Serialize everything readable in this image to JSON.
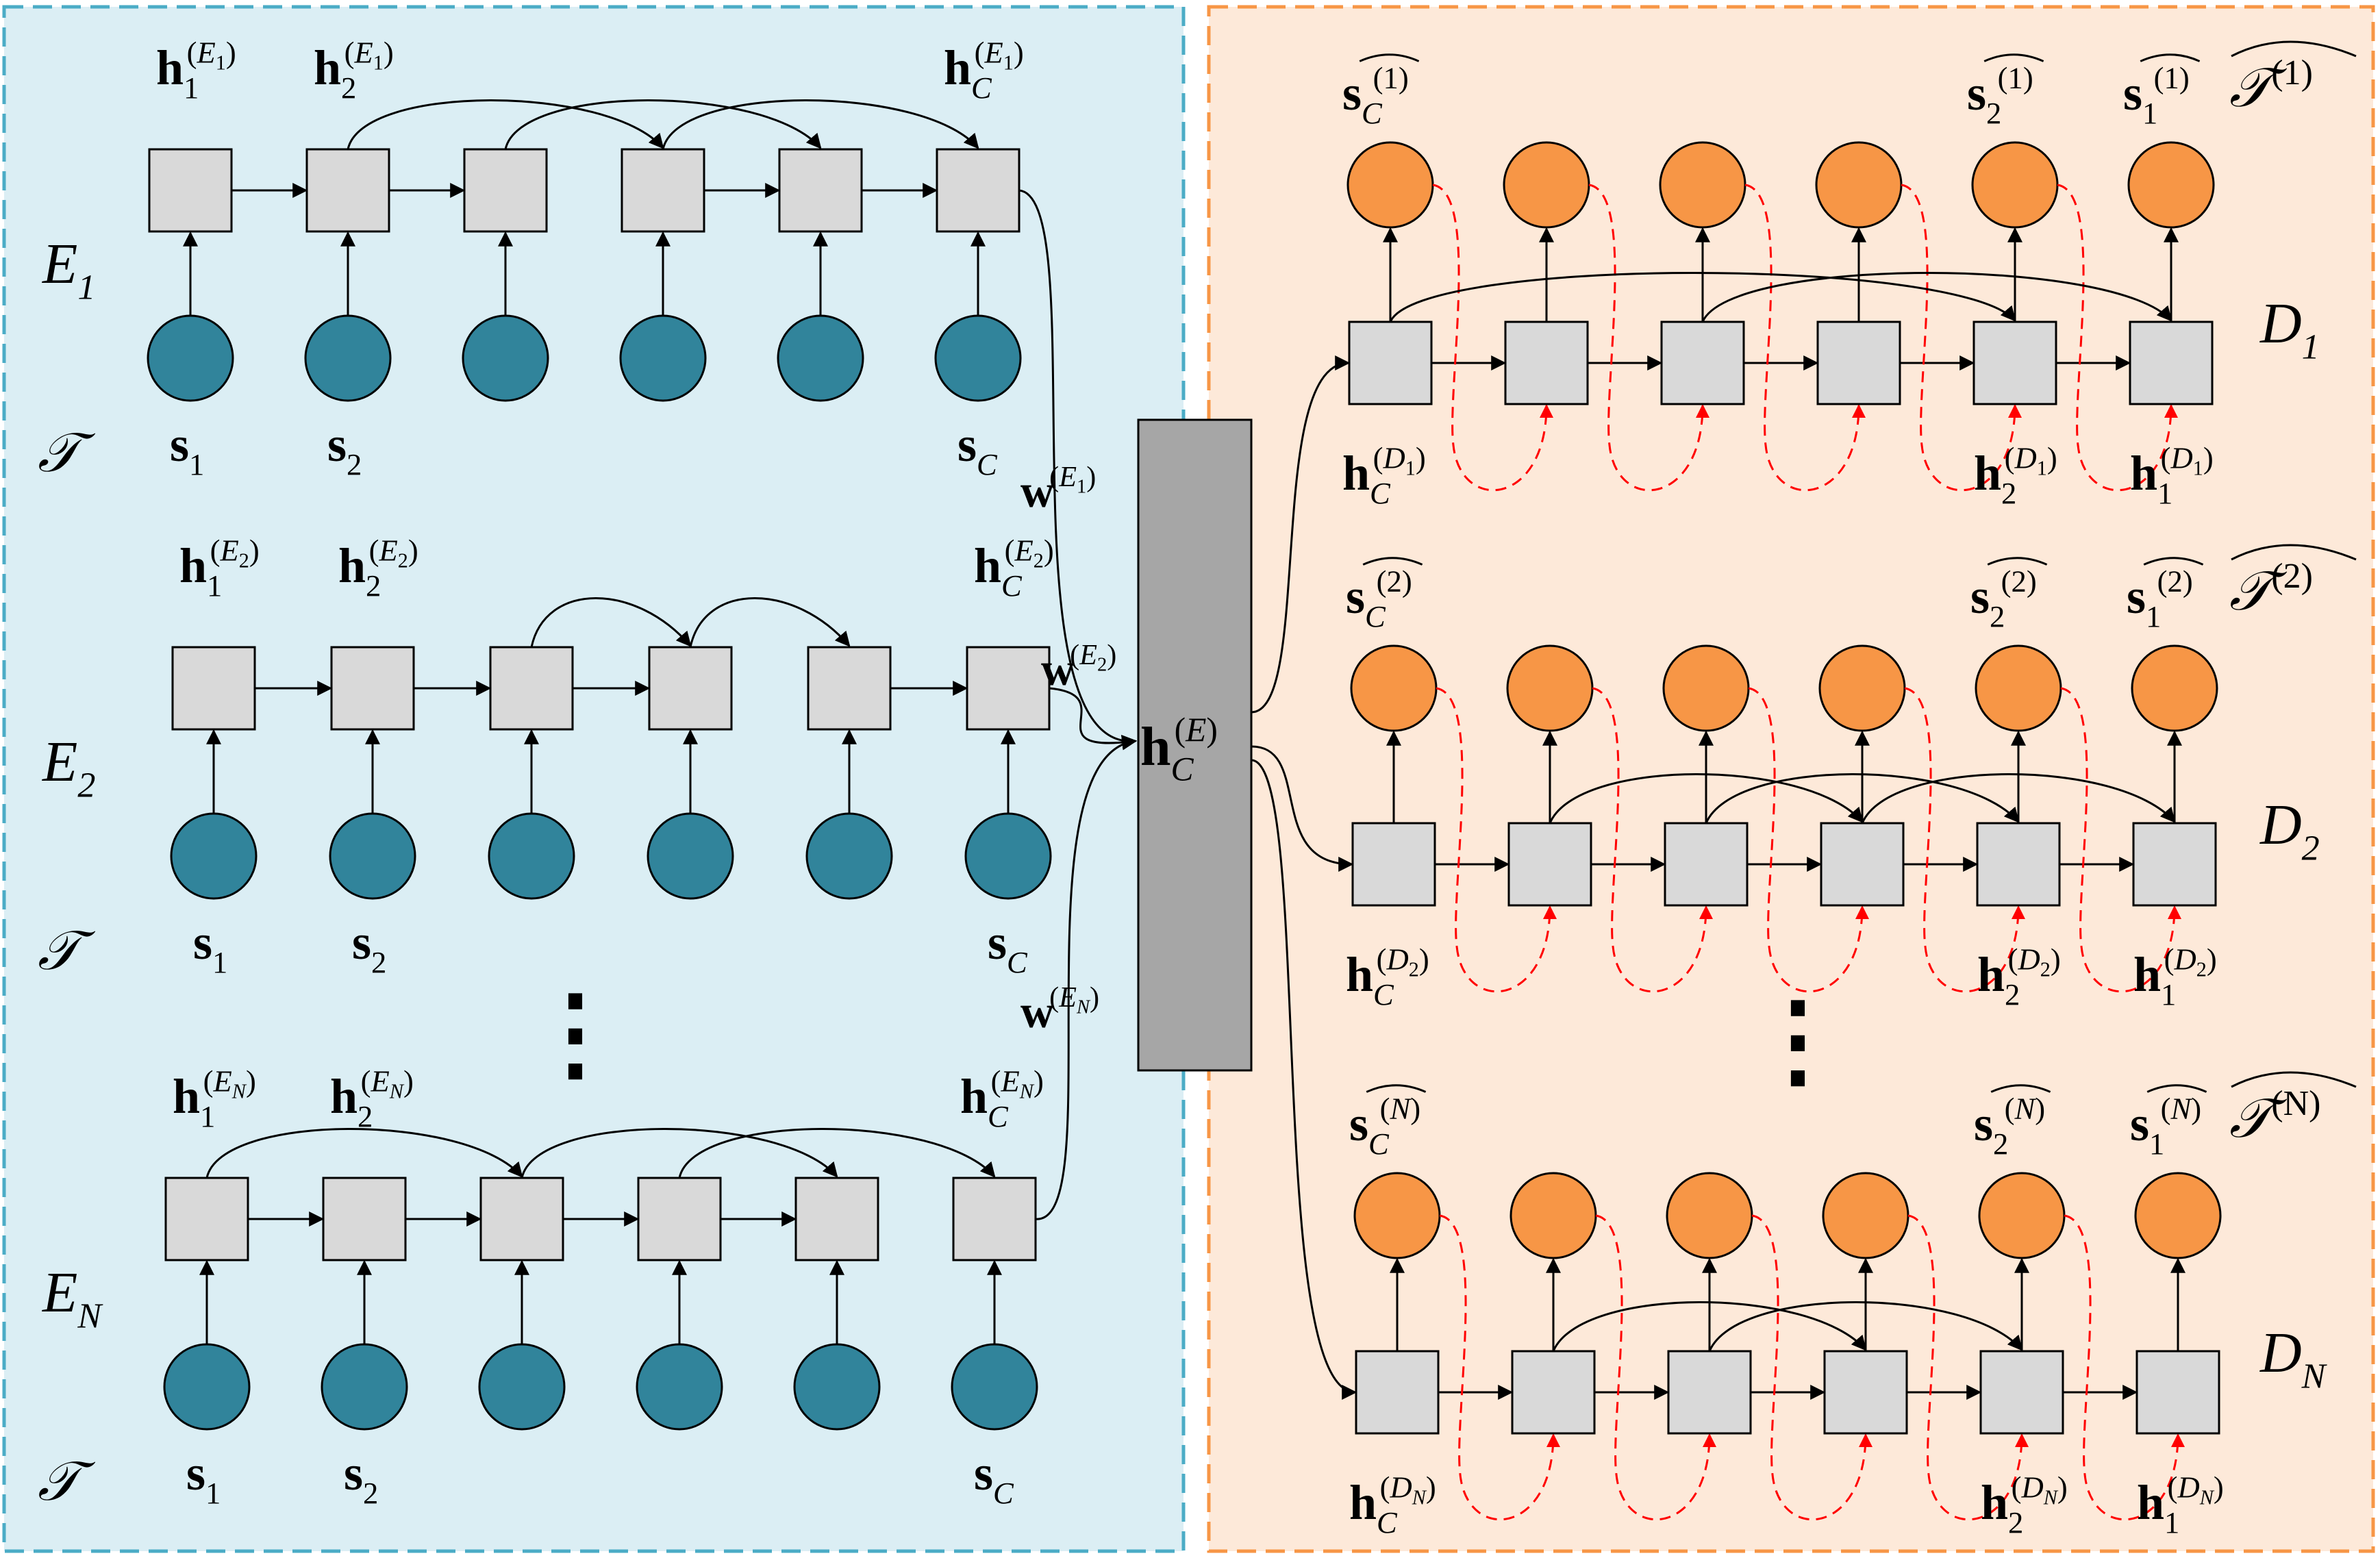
{
  "panels": {
    "encoder": {
      "fill": "#dbeef4",
      "border": "#4bacc6"
    },
    "decoder": {
      "fill": "#fde9d9",
      "border": "#f79646"
    }
  },
  "colors": {
    "input_node": "#31849b",
    "output_node": "#f79646",
    "hidden_node": "#d9d9d9",
    "context_block": "#a6a6a6",
    "skip_arrow": "#000000",
    "feedback_arrow": "#ff0000"
  },
  "shared": {
    "series_symbol": "𝒯",
    "context_vector": {
      "base": "h",
      "sub": "C",
      "sup": "(E)"
    }
  },
  "encoders": [
    {
      "name": {
        "base": "E",
        "sub": "1"
      },
      "hidden_labels": [
        {
          "base": "h",
          "sub": "1",
          "sup": "(E",
          "supsub": "1",
          ")": ")"
        },
        {
          "base": "h",
          "sub": "2",
          "sup": "(E",
          "supsub": "1"
        },
        {
          "base": "h",
          "sub": "C",
          "sup": "(E",
          "supsub": "1"
        }
      ],
      "input_labels": [
        {
          "base": "s",
          "sub": "1"
        },
        {
          "base": "s",
          "sub": "2"
        },
        {
          "base": "s",
          "sub": "C"
        }
      ],
      "weight": {
        "base": "w",
        "sup": "(E",
        "supsub": "1"
      }
    },
    {
      "name": {
        "base": "E",
        "sub": "2"
      },
      "hidden_labels": [
        {
          "base": "h",
          "sub": "1",
          "sup": "(E",
          "supsub": "2"
        },
        {
          "base": "h",
          "sub": "2",
          "sup": "(E",
          "supsub": "2"
        },
        {
          "base": "h",
          "sub": "C",
          "sup": "(E",
          "supsub": "2"
        }
      ],
      "input_labels": [
        {
          "base": "s",
          "sub": "1"
        },
        {
          "base": "s",
          "sub": "2"
        },
        {
          "base": "s",
          "sub": "C"
        }
      ],
      "weight": {
        "base": "w",
        "sup": "(E",
        "supsub": "2"
      }
    },
    {
      "name": {
        "base": "E",
        "sub": "N"
      },
      "hidden_labels": [
        {
          "base": "h",
          "sub": "1",
          "sup": "(E",
          "supsub": "N"
        },
        {
          "base": "h",
          "sub": "2",
          "sup": "(E",
          "supsub": "N"
        },
        {
          "base": "h",
          "sub": "C",
          "sup": "(E",
          "supsub": "N"
        }
      ],
      "input_labels": [
        {
          "base": "s",
          "sub": "1"
        },
        {
          "base": "s",
          "sub": "2"
        },
        {
          "base": "s",
          "sub": "C"
        }
      ],
      "weight": {
        "base": "w",
        "sup": "(E",
        "supsub": "N"
      }
    }
  ],
  "decoders": [
    {
      "name": {
        "base": "D",
        "sub": "1"
      },
      "output_labels": [
        {
          "base": "s",
          "sub": "C",
          "sup": "(1)"
        },
        {
          "base": "s",
          "sub": "2",
          "sup": "(1)"
        },
        {
          "base": "s",
          "sub": "1",
          "sup": "(1)"
        }
      ],
      "series_label": {
        "sup": "(1)"
      },
      "hidden_labels": [
        {
          "base": "h",
          "sub": "C",
          "sup": "(D",
          "supsub": "1"
        },
        {
          "base": "h",
          "sub": "2",
          "sup": "(D",
          "supsub": "1"
        },
        {
          "base": "h",
          "sub": "1",
          "sup": "(D",
          "supsub": "1"
        }
      ]
    },
    {
      "name": {
        "base": "D",
        "sub": "2"
      },
      "output_labels": [
        {
          "base": "s",
          "sub": "C",
          "sup": "(2)"
        },
        {
          "base": "s",
          "sub": "2",
          "sup": "(2)"
        },
        {
          "base": "s",
          "sub": "1",
          "sup": "(2)"
        }
      ],
      "series_label": {
        "sup": "(2)"
      },
      "hidden_labels": [
        {
          "base": "h",
          "sub": "C",
          "sup": "(D",
          "supsub": "2"
        },
        {
          "base": "h",
          "sub": "2",
          "sup": "(D",
          "supsub": "2"
        },
        {
          "base": "h",
          "sub": "1",
          "sup": "(D",
          "supsub": "2"
        }
      ]
    },
    {
      "name": {
        "base": "D",
        "sub": "N"
      },
      "output_labels": [
        {
          "base": "s",
          "sub": "C",
          "sup": "(N)"
        },
        {
          "base": "s",
          "sub": "2",
          "sup": "(N)"
        },
        {
          "base": "s",
          "sub": "1",
          "sup": "(N)"
        }
      ],
      "series_label": {
        "sup": "(N)"
      },
      "hidden_labels": [
        {
          "base": "h",
          "sub": "C",
          "sup": "(D",
          "supsub": "N"
        },
        {
          "base": "h",
          "sub": "2",
          "sup": "(D",
          "supsub": "N"
        },
        {
          "base": "h",
          "sub": "1",
          "sup": "(D",
          "supsub": "N"
        }
      ]
    }
  ],
  "ellipsis": "⋮"
}
